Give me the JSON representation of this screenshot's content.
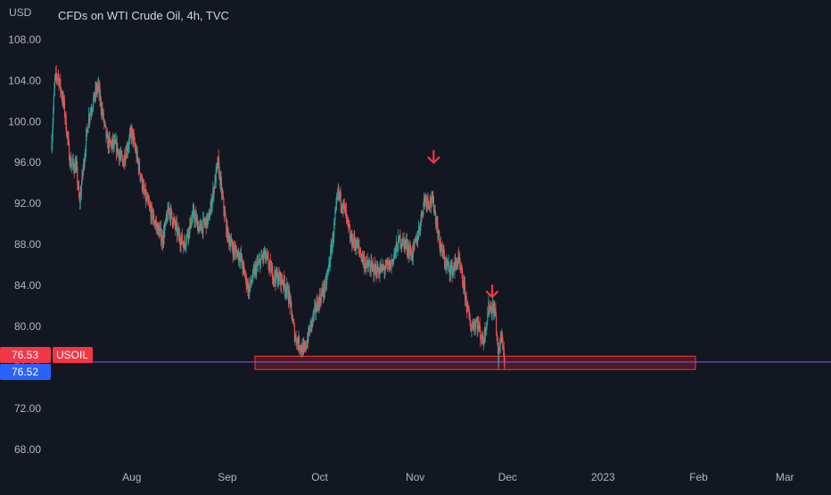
{
  "header": {
    "currency": "USD",
    "title": "CFDs on WTI Crude Oil, 4h, TVC"
  },
  "colors": {
    "background": "#131722",
    "up": "#26a69a",
    "down": "#ef5350",
    "axis_text": "#b2b5be",
    "zone_fill": "#5a1a22",
    "zone_stroke": "#f23645",
    "price_line": "#7b5cff",
    "badge_red": "#f23645",
    "badge_blue": "#2962ff",
    "arrow": "#f23645"
  },
  "badges": {
    "last_price": "76.53",
    "symbol": "USOIL",
    "prev_close": "76.52"
  },
  "annotations": {
    "arrows": [
      {
        "date": "2022-11-07",
        "price": 96.5,
        "icon": "arrow-down-icon"
      },
      {
        "date": "2022-11-26",
        "price": 83.4,
        "icon": "arrow-down-icon"
      }
    ],
    "support_zone": {
      "start": "2022-09-10",
      "end": "2023-01-31",
      "low": 75.8,
      "high": 77.1
    },
    "price_line_value": 76.53
  },
  "chart_data": {
    "type": "candlestick",
    "title": "CFDs on WTI Crude Oil, 4h, TVC",
    "ylabel": "USD",
    "yticks": [
      "108.00",
      "104.00",
      "100.00",
      "96.00",
      "92.00",
      "88.00",
      "84.00",
      "80.00",
      "76.00",
      "72.00",
      "68.00"
    ],
    "ylim": [
      66.6,
      109.6
    ],
    "xticks": [
      {
        "label": "Aug",
        "date": "2022-08-01"
      },
      {
        "label": "Sep",
        "date": "2022-09-01"
      },
      {
        "label": "Oct",
        "date": "2022-10-01"
      },
      {
        "label": "Nov",
        "date": "2022-11-01"
      },
      {
        "label": "Dec",
        "date": "2022-12-01"
      },
      {
        "label": "2023",
        "date": "2023-01-01"
      },
      {
        "label": "Feb",
        "date": "2023-02-01"
      },
      {
        "label": "Mar",
        "date": "2023-03-01"
      }
    ],
    "xlim": [
      "2022-07-06",
      "2023-03-16"
    ],
    "grid": false,
    "series_close_path": [
      [
        "2022-07-06",
        98.0
      ],
      [
        "2022-07-07",
        104.0
      ],
      [
        "2022-07-08",
        104.6
      ],
      [
        "2022-07-10",
        101.5
      ],
      [
        "2022-07-12",
        96.0
      ],
      [
        "2022-07-14",
        95.5
      ],
      [
        "2022-07-15",
        92.0
      ],
      [
        "2022-07-18",
        100.5
      ],
      [
        "2022-07-21",
        103.5
      ],
      [
        "2022-07-24",
        98.0
      ],
      [
        "2022-07-27",
        97.5
      ],
      [
        "2022-07-29",
        96.0
      ],
      [
        "2022-08-01",
        99.0
      ],
      [
        "2022-08-03",
        96.0
      ],
      [
        "2022-08-05",
        93.0
      ],
      [
        "2022-08-08",
        90.5
      ],
      [
        "2022-08-11",
        88.5
      ],
      [
        "2022-08-13",
        91.5
      ],
      [
        "2022-08-16",
        89.0
      ],
      [
        "2022-08-18",
        88.0
      ],
      [
        "2022-08-21",
        91.0
      ],
      [
        "2022-08-23",
        89.5
      ],
      [
        "2022-08-26",
        90.5
      ],
      [
        "2022-08-29",
        96.0
      ],
      [
        "2022-08-30",
        93.5
      ],
      [
        "2022-09-01",
        89.0
      ],
      [
        "2022-09-03",
        87.5
      ],
      [
        "2022-09-05",
        87.0
      ],
      [
        "2022-09-08",
        83.5
      ],
      [
        "2022-09-10",
        85.5
      ],
      [
        "2022-09-13",
        87.0
      ],
      [
        "2022-09-16",
        85.0
      ],
      [
        "2022-09-19",
        84.5
      ],
      [
        "2022-09-21",
        83.0
      ],
      [
        "2022-09-23",
        79.0
      ],
      [
        "2022-09-26",
        77.5
      ],
      [
        "2022-09-28",
        80.0
      ],
      [
        "2022-09-30",
        82.0
      ],
      [
        "2022-10-03",
        84.0
      ],
      [
        "2022-10-05",
        88.0
      ],
      [
        "2022-10-07",
        93.0
      ],
      [
        "2022-10-09",
        91.5
      ],
      [
        "2022-10-11",
        88.5
      ],
      [
        "2022-10-13",
        88.0
      ],
      [
        "2022-10-16",
        86.0
      ],
      [
        "2022-10-19",
        85.5
      ],
      [
        "2022-10-21",
        85.5
      ],
      [
        "2022-10-24",
        86.0
      ],
      [
        "2022-10-27",
        88.5
      ],
      [
        "2022-10-29",
        88.0
      ],
      [
        "2022-10-31",
        87.0
      ],
      [
        "2022-11-02",
        89.0
      ],
      [
        "2022-11-04",
        92.5
      ],
      [
        "2022-11-07",
        92.0
      ],
      [
        "2022-11-09",
        88.0
      ],
      [
        "2022-11-11",
        86.0
      ],
      [
        "2022-11-13",
        85.5
      ],
      [
        "2022-11-15",
        86.5
      ],
      [
        "2022-11-17",
        83.5
      ],
      [
        "2022-11-19",
        80.0
      ],
      [
        "2022-11-21",
        80.5
      ],
      [
        "2022-11-23",
        78.5
      ],
      [
        "2022-11-25",
        82.0
      ],
      [
        "2022-11-27",
        81.5
      ],
      [
        "2022-11-28",
        76.8
      ],
      [
        "2022-11-29",
        79.5
      ],
      [
        "2022-11-30",
        76.53
      ]
    ]
  }
}
